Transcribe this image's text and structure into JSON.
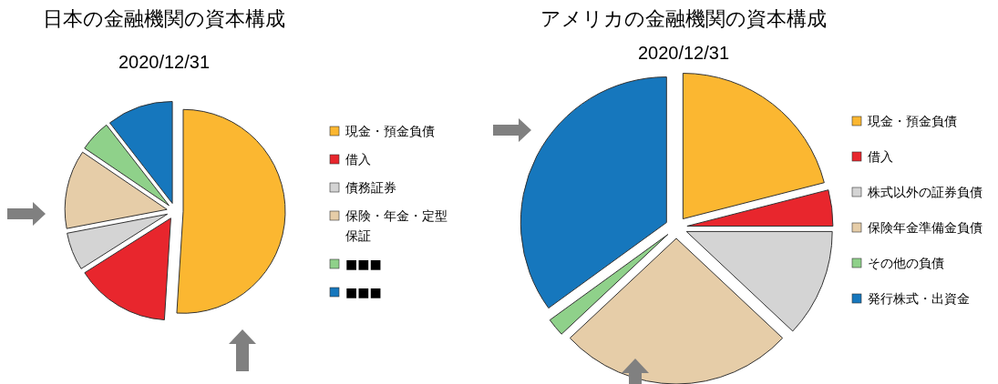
{
  "chart_data": [
    {
      "type": "pie",
      "title": "日本の金融機関の資本構成",
      "subtitle": "2020/12/31",
      "legend": "right",
      "categories": [
        "現金・預金負債",
        "借入",
        "債務証券",
        "保険・年金・定型保証",
        "■■■",
        "■■■"
      ],
      "values": [
        51,
        15,
        6,
        12.5,
        5,
        10.5
      ],
      "colors": [
        "#fbb731",
        "#e8262d",
        "#d4d4d4",
        "#e6cda8",
        "#8fd18a",
        "#1677bd"
      ]
    },
    {
      "type": "pie",
      "title": "アメリカの金融機関の資本構成",
      "subtitle": "2020/12/31",
      "legend": "right",
      "categories": [
        "現金・預金負債",
        "借入",
        "株式以外の証券負債",
        "保険年金準備金負債",
        "その他の負債",
        "発行株式・出資金"
      ],
      "values": [
        21,
        4,
        12,
        26,
        2,
        35
      ],
      "colors": [
        "#fbb731",
        "#e8262d",
        "#d4d4d4",
        "#e6cda8",
        "#8fd18a",
        "#1677bd"
      ]
    }
  ]
}
